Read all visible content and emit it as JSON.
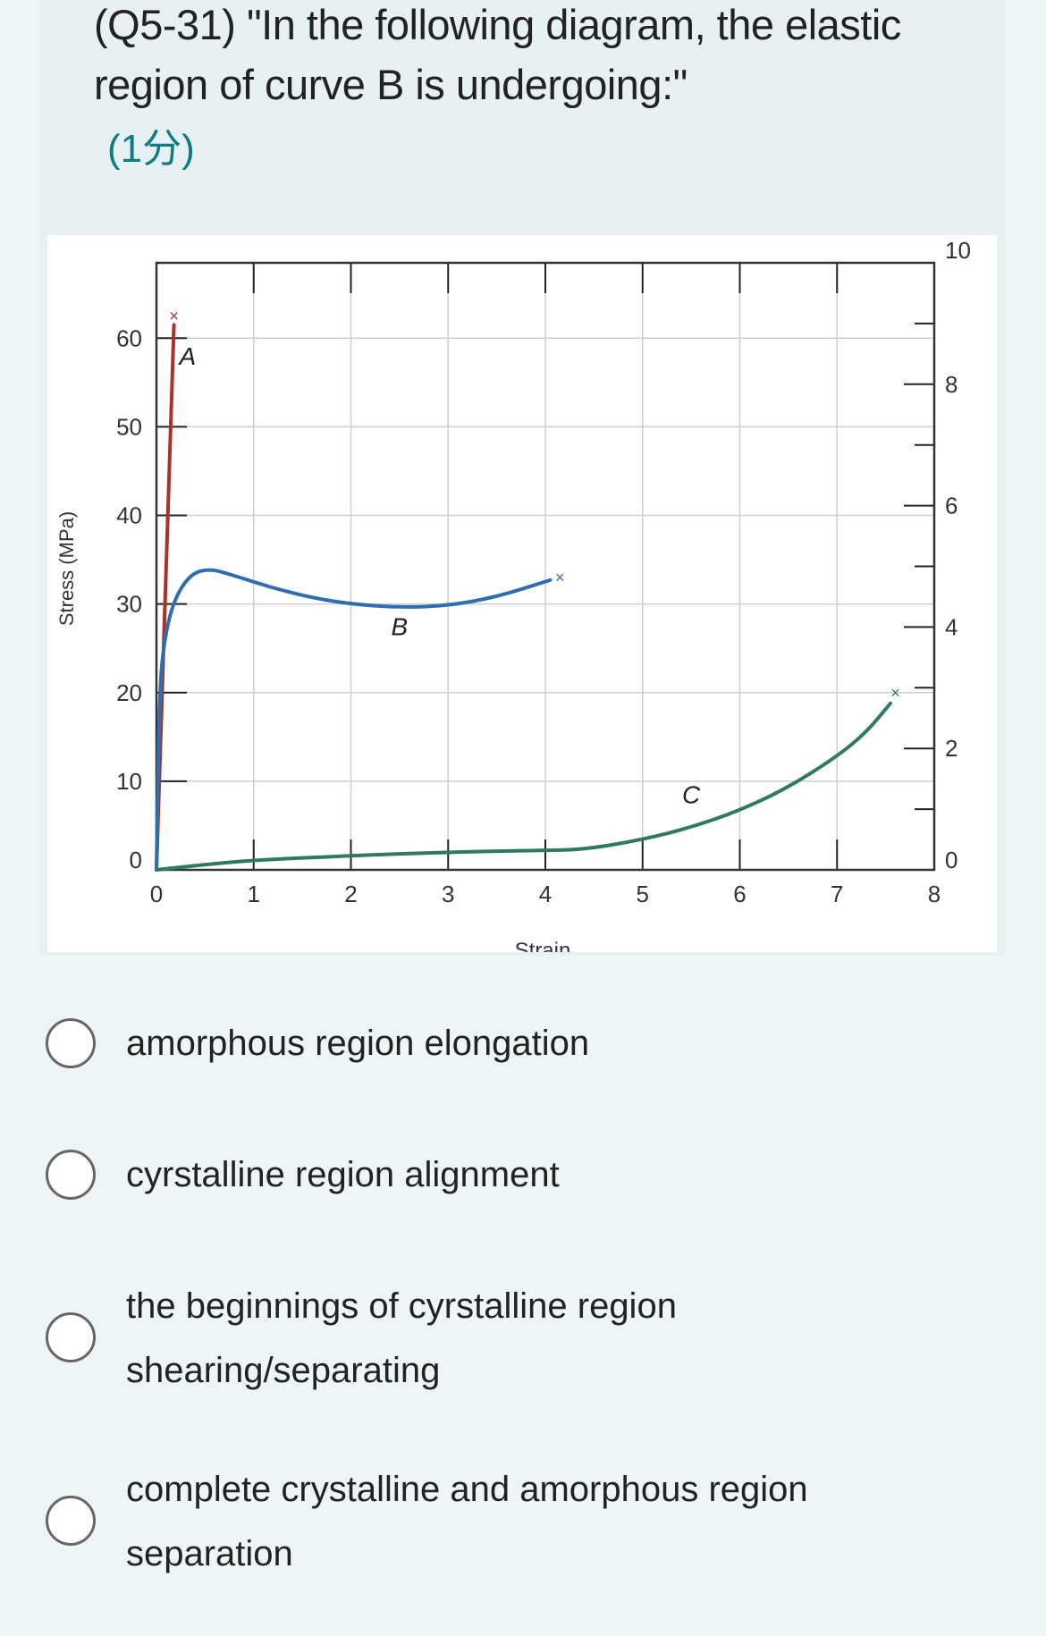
{
  "question": {
    "title": "(Q5-31) \"In the following diagram, the elastic region of curve B is undergoing:\"",
    "points": "(1分)",
    "points_color": "#0e7c80"
  },
  "chart_data": {
    "type": "line",
    "xlabel": "Strain",
    "ylabel": "Stress (MPa)",
    "xlim": [
      0,
      8
    ],
    "ylim": [
      0,
      68.5
    ],
    "y2lim": [
      0,
      10
    ],
    "x_ticks": [
      "0",
      "1",
      "2",
      "3",
      "4",
      "5",
      "6",
      "7",
      "8"
    ],
    "y_ticks": [
      "0",
      "10",
      "20",
      "30",
      "40",
      "50",
      "60"
    ],
    "y2_ticks": [
      "0",
      "2",
      "4",
      "6",
      "8",
      "10"
    ],
    "grid": true,
    "series": [
      {
        "name": "A",
        "color": "#a8322a",
        "points": [
          [
            0,
            0
          ],
          [
            0.18,
            61.5
          ]
        ],
        "fracture": [
          0.18,
          62.5
        ],
        "label_at": [
          0.32,
          57
        ]
      },
      {
        "name": "B",
        "color": "#2f6db0",
        "points": [
          [
            0,
            0
          ],
          [
            0.03,
            20
          ],
          [
            0.08,
            26
          ],
          [
            0.18,
            30.5
          ],
          [
            0.35,
            33.4
          ],
          [
            0.55,
            34
          ],
          [
            0.8,
            33.2
          ],
          [
            1.2,
            31.8
          ],
          [
            1.6,
            30.7
          ],
          [
            2,
            30
          ],
          [
            2.5,
            29.6
          ],
          [
            3,
            29.8
          ],
          [
            3.5,
            30.8
          ],
          [
            4.05,
            32.7
          ]
        ],
        "fracture": [
          4.15,
          33
        ],
        "label_at": [
          2.5,
          26.5
        ]
      },
      {
        "name": "C",
        "color": "#2e7a5a",
        "points": [
          [
            0,
            0
          ],
          [
            0.5,
            0.6
          ],
          [
            1,
            1.1
          ],
          [
            2,
            1.6
          ],
          [
            3,
            2
          ],
          [
            4,
            2.2
          ],
          [
            4.4,
            2.3
          ],
          [
            5,
            3.4
          ],
          [
            5.5,
            4.8
          ],
          [
            6,
            6.7
          ],
          [
            6.5,
            9.3
          ],
          [
            7,
            12.8
          ],
          [
            7.3,
            15.5
          ],
          [
            7.55,
            18.8
          ]
        ],
        "fracture": [
          7.6,
          20
        ],
        "label_at": [
          5.5,
          7.5
        ]
      }
    ]
  },
  "options": [
    {
      "label": "amorphous region elongation"
    },
    {
      "label": "cyrstalline region alignment"
    },
    {
      "label": "the beginnings of cyrstalline region shearing/separating"
    },
    {
      "label": "complete crystalline and amorphous region separation"
    }
  ]
}
